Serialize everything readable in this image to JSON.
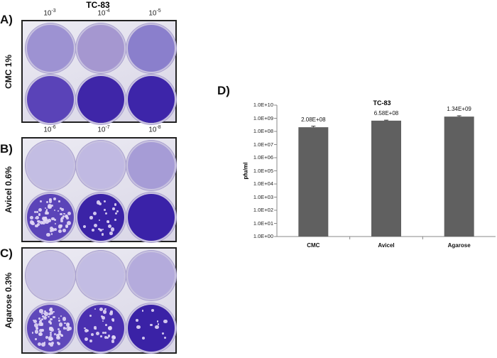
{
  "figure": {
    "title": "TC-83",
    "panels": [
      {
        "label": "A)",
        "row_label": "CMC 1%",
        "dilutions_top": [
          "-3",
          "-4",
          "-5"
        ],
        "wells": [
          {
            "tone": "#9d92d2",
            "plaques": 0
          },
          {
            "tone": "#a597d0",
            "plaques": 0
          },
          {
            "tone": "#8a7fcc",
            "plaques": 0
          },
          {
            "tone": "#5a43b8",
            "plaques": 0
          },
          {
            "tone": "#3f26a8",
            "plaques": 0
          },
          {
            "tone": "#3d25a9",
            "plaques": 0
          }
        ]
      },
      {
        "label": "B)",
        "row_label": "Avicel 0.6%",
        "dilutions_top": [
          "-6",
          "-7",
          "-8"
        ],
        "wells": [
          {
            "tone": "#c3bde3",
            "plaques": 0
          },
          {
            "tone": "#c0b9e2",
            "plaques": 0
          },
          {
            "tone": "#a69cd6",
            "plaques": 0
          },
          {
            "tone": "#5b44b8",
            "plaques": 70
          },
          {
            "tone": "#3b23a6",
            "plaques": 25
          },
          {
            "tone": "#3a22a8",
            "plaques": 0
          }
        ]
      },
      {
        "label": "C)",
        "row_label": "Agarose 0.3%",
        "wells": [
          {
            "tone": "#c6c0e4",
            "plaques": 0
          },
          {
            "tone": "#c2bce3",
            "plaques": 0
          },
          {
            "tone": "#b4abdc",
            "plaques": 0
          },
          {
            "tone": "#5f48ba",
            "plaques": 80
          },
          {
            "tone": "#4a2fb0",
            "plaques": 35
          },
          {
            "tone": "#3a22a6",
            "plaques": 12
          }
        ]
      }
    ]
  },
  "chart_data": {
    "panel_label": "D)",
    "type": "bar",
    "title": "TC-83",
    "ylabel": "pfu/ml",
    "xlabel": "",
    "yscale": "log",
    "ylim": [
      1,
      10000000000
    ],
    "yticks": [
      "1.0E+00",
      "1.0E+01",
      "1.0E+02",
      "1.0E+03",
      "1.0E+04",
      "1.0E+05",
      "1.0E+06",
      "1.0E+07",
      "1.0E+08",
      "1.0E+09",
      "1.0E+10"
    ],
    "categories": [
      "CMC",
      "Avicel",
      "Agarose"
    ],
    "values": [
      208000000,
      658000000,
      1340000000
    ],
    "data_labels": [
      "2.08E+08",
      "6.58E+08",
      "1.34E+09"
    ],
    "error_upper": [
      250000000,
      720000000,
      1550000000
    ],
    "bar_color": "#606060",
    "grid": false
  }
}
